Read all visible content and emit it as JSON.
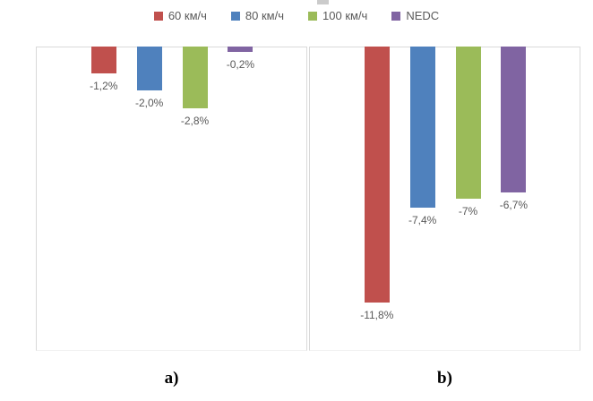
{
  "legend": {
    "position": "top",
    "items": [
      {
        "label": "60 км/ч",
        "color": "#C0504D"
      },
      {
        "label": "80 км/ч",
        "color": "#4F81BD"
      },
      {
        "label": "100 км/ч",
        "color": "#9BBB59"
      },
      {
        "label": "NEDC",
        "color": "#8064A2"
      }
    ]
  },
  "colors": {
    "series_red": "#C0504D",
    "series_blue": "#4F81BD",
    "series_green": "#9BBB59",
    "series_purple": "#8064A2",
    "plot_border": "#d9d9d9",
    "value_label_text": "#595959",
    "legend_text": "#595959",
    "background": "#ffffff"
  },
  "chart_data": [
    {
      "panel": "a",
      "type": "bar",
      "title": "",
      "categories": [
        "60 км/ч",
        "80 км/ч",
        "100 км/ч",
        "NEDC"
      ],
      "values": [
        -1.2,
        -2.0,
        -2.8,
        -0.2
      ],
      "value_labels": [
        "-1,2%",
        "-2,0%",
        "-2,8%",
        "-0,2%"
      ],
      "ylim": [
        -14,
        0
      ],
      "grid": false,
      "legend_position": "top-shared",
      "caption": "a)"
    },
    {
      "panel": "b",
      "type": "bar",
      "title": "",
      "categories": [
        "60 км/ч",
        "80 км/ч",
        "100 км/ч",
        "NEDC"
      ],
      "values": [
        -11.8,
        -7.4,
        -7,
        -6.7
      ],
      "value_labels": [
        "-11,8%",
        "-7,4%",
        "-7%",
        "-6,7%"
      ],
      "ylim": [
        -14,
        0
      ],
      "grid": false,
      "legend_position": "top-shared",
      "caption": "b)"
    }
  ]
}
